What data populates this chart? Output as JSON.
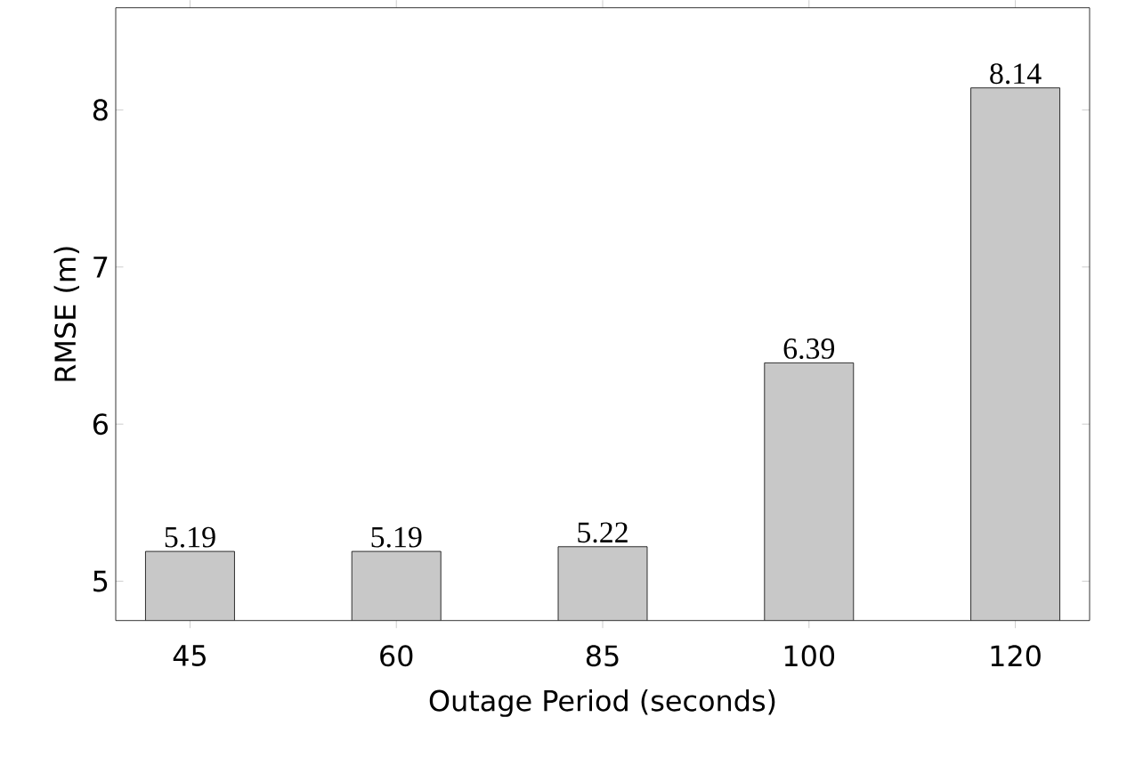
{
  "chart_data": {
    "type": "bar",
    "xlabel": "Outage Period (seconds)",
    "ylabel": "RMSE (m)",
    "categories": [
      "45",
      "60",
      "85",
      "100",
      "120"
    ],
    "values": [
      5.19,
      5.19,
      5.22,
      6.39,
      8.14
    ],
    "color": "#c8c8c8",
    "ylim": [
      4.75,
      8.65
    ],
    "yticks": [
      5,
      6,
      7,
      8
    ],
    "data_labels": true
  }
}
